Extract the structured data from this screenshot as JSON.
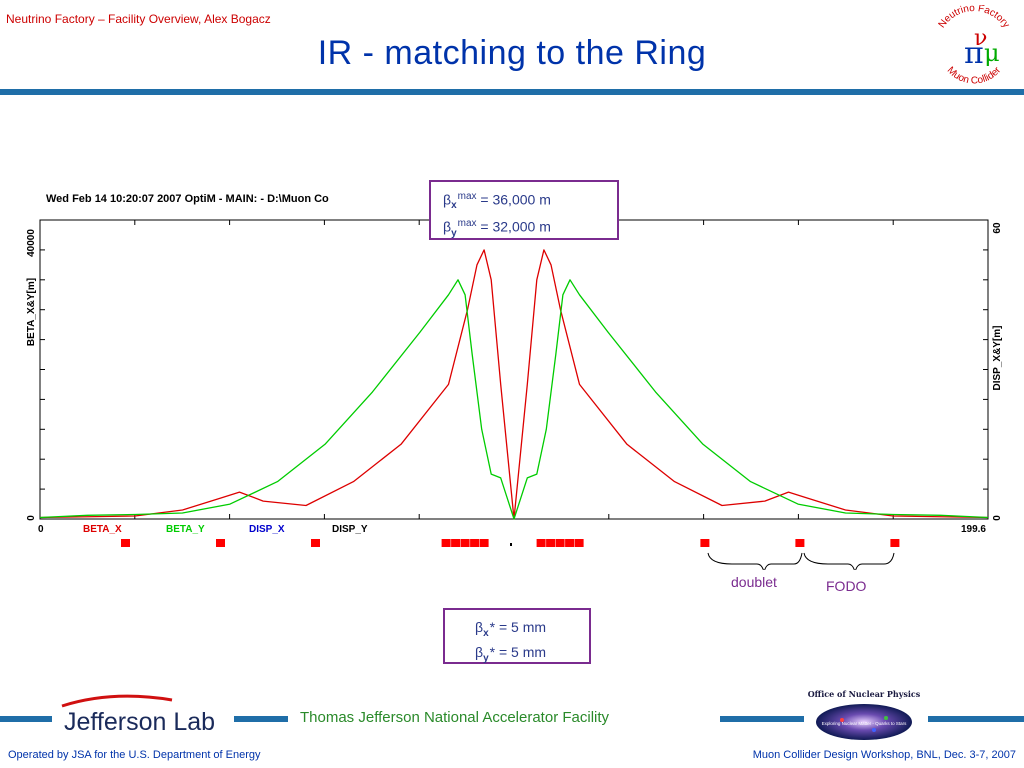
{
  "header": {
    "subtitle": "Neutrino Factory – Facility Overview, Alex Bogacz",
    "title": "IR - matching to the Ring"
  },
  "logo_nf": {
    "top_text": "Neutrino Factory",
    "bottom_text": "Muon Collider",
    "pi_symbol": "π",
    "nu_symbol": "ν",
    "mu_symbol": "μ"
  },
  "chart_data": {
    "type": "line",
    "header_text": "Wed Feb 14 10:20:07 2007    OptiM - MAIN: - D:\\Muon Co",
    "ylabel_left": "BETA_X&Y[m]",
    "ylabel_right": "DISP_X&Y[m]",
    "y_left_ticks": [
      "0",
      "40000"
    ],
    "y_right_ticks": [
      "0",
      "60"
    ],
    "x_ticks": [
      "0",
      "199.6"
    ],
    "xlim": [
      0,
      199.6
    ],
    "ylim_left": [
      0,
      40000
    ],
    "ylim_right": [
      0,
      60
    ],
    "legend": [
      {
        "name": "BETA_X",
        "color": "#dd0000"
      },
      {
        "name": "BETA_Y",
        "color": "#00cc00"
      },
      {
        "name": "DISP_X",
        "color": "#0000cc"
      },
      {
        "name": "DISP_Y",
        "color": "#000000"
      }
    ],
    "series": [
      {
        "name": "BETA_X",
        "color": "#dd0000",
        "x": [
          0,
          20,
          30,
          38,
          42,
          47,
          56,
          66,
          76,
          86,
          90,
          92,
          93.5,
          95,
          97,
          99.8,
          102.6,
          104.6,
          106.1,
          107.6,
          109.6,
          113.6,
          123.6,
          133.6,
          143.6,
          152.6,
          157.6,
          161.6,
          169.6,
          179.6,
          199.6
        ],
        "y": [
          200,
          400,
          1200,
          2800,
          3600,
          2400,
          1800,
          5000,
          10000,
          18000,
          28000,
          34000,
          36000,
          32000,
          18000,
          0,
          18000,
          32000,
          36000,
          34000,
          28000,
          18000,
          10000,
          5000,
          1800,
          2400,
          3600,
          2800,
          1200,
          400,
          200
        ]
      },
      {
        "name": "BETA_Y",
        "color": "#00cc00",
        "x": [
          0,
          10,
          20,
          30,
          40,
          50,
          60,
          70,
          80,
          86,
          88,
          89.5,
          91,
          93,
          95,
          97,
          99.8,
          102.6,
          104.6,
          106.6,
          108.6,
          110.1,
          111.6,
          113.6,
          119.6,
          129.6,
          139.6,
          149.6,
          159.6,
          169.6,
          179.6,
          189.6,
          199.6
        ],
        "y": [
          200,
          500,
          600,
          800,
          2000,
          5000,
          10000,
          17000,
          25000,
          30000,
          32000,
          30000,
          22000,
          12000,
          6000,
          5500,
          0,
          5500,
          6000,
          12000,
          22000,
          30000,
          32000,
          30000,
          25000,
          17000,
          10000,
          5000,
          2000,
          800,
          600,
          500,
          200
        ]
      }
    ],
    "magnets": [
      18,
      38,
      58,
      85.5,
      87.5,
      89.5,
      91.5,
      93.5,
      105.5,
      107.5,
      109.5,
      111.5,
      113.5,
      140,
      160,
      180
    ],
    "magnet_color": "#ff0000"
  },
  "annotations": {
    "beta_x_max": "= 36,000 m",
    "beta_y_max": "= 32,000 m",
    "beta_x_star": "* = 5 mm",
    "beta_y_star": "* = 5 mm",
    "beta_symbol": "β",
    "x_sub": "x",
    "y_sub": "y",
    "max_sup": "max",
    "doublet_label": "doublet",
    "fodo_label": "FODO"
  },
  "footer": {
    "jlab_logo": "Jefferson Lab",
    "facility": "Thomas Jefferson National Accelerator Facility",
    "onp_top": "Office of Nuclear Physics",
    "onp_bottom": "Exploring Nuclear Matter - Quarks to Stars",
    "left_note": "Operated by JSA for the U.S. Department of Energy",
    "right_note": "Muon Collider Design Workshop, BNL, Dec. 3-7, 2007"
  },
  "colors": {
    "brand_blue": "#1f6ea8",
    "title_blue": "#0033aa",
    "box_purple": "#7a2b8f"
  }
}
